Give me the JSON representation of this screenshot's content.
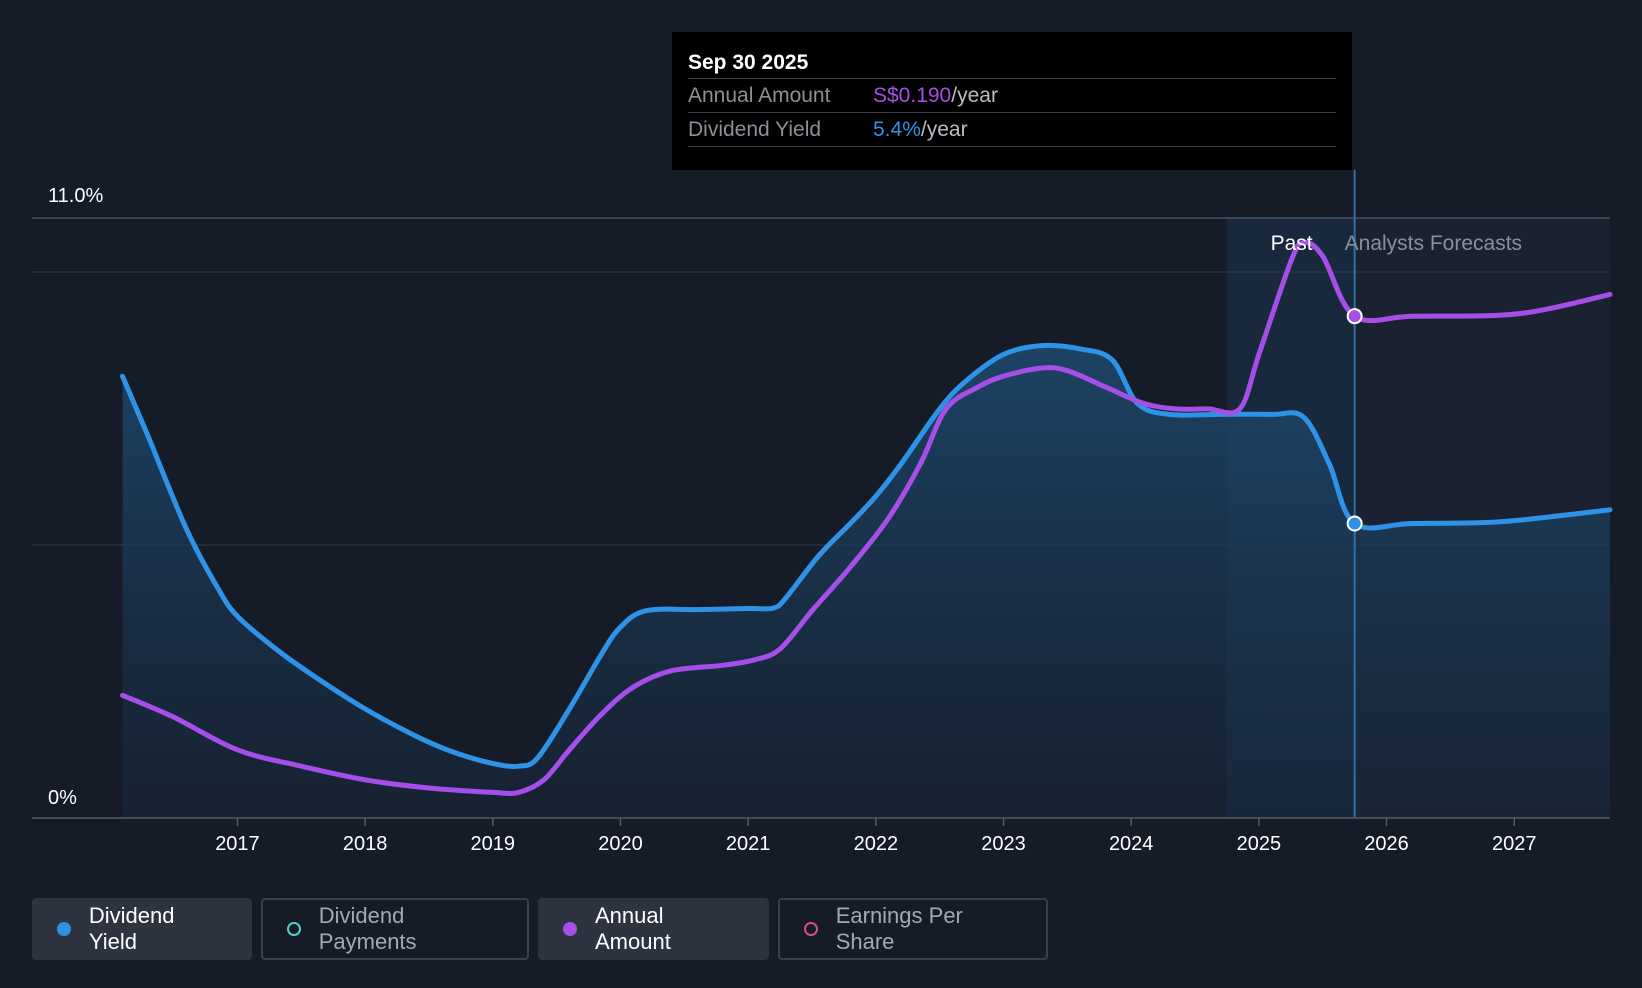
{
  "tooltip": {
    "date": "Sep 30 2025",
    "rows": [
      {
        "label": "Annual Amount",
        "value": "S$0.190",
        "unit": "/year",
        "color": "#a64ee8"
      },
      {
        "label": "Dividend Yield",
        "value": "5.4%",
        "unit": "/year",
        "color": "#2e93e6"
      }
    ]
  },
  "legend": [
    {
      "label": "Dividend Yield",
      "active": true,
      "filled": true,
      "color": "#2e93e6"
    },
    {
      "label": "Dividend Payments",
      "active": false,
      "filled": false,
      "color": "#4fd1c5"
    },
    {
      "label": "Annual Amount",
      "active": true,
      "filled": true,
      "color": "#a64ee8"
    },
    {
      "label": "Earnings Per Share",
      "active": false,
      "filled": false,
      "color": "#d44f8a"
    }
  ],
  "chart_data": {
    "type": "line",
    "y_tick_labels": [
      "11.0%",
      "0%"
    ],
    "ylim": [
      0,
      11
    ],
    "xlim": [
      2015.9,
      2027.75
    ],
    "x_tick_labels": [
      "2017",
      "2018",
      "2019",
      "2020",
      "2021",
      "2022",
      "2023",
      "2024",
      "2025",
      "2026",
      "2027"
    ],
    "x_ticks": [
      2017,
      2018,
      2019,
      2020,
      2021,
      2022,
      2023,
      2024,
      2025,
      2026,
      2027
    ],
    "regions": {
      "past_label": "Past",
      "forecast_label": "Analysts Forecasts",
      "boundary_x": 2025.75,
      "past_shade_start": 2024.75
    },
    "hover_x": 2025.75,
    "series": [
      {
        "name": "Dividend Yield",
        "color": "#2e93e6",
        "area": true,
        "points": [
          [
            2016.1,
            8.1
          ],
          [
            2016.3,
            7.0
          ],
          [
            2016.6,
            5.3
          ],
          [
            2016.85,
            4.2
          ],
          [
            2017.0,
            3.7
          ],
          [
            2017.3,
            3.1
          ],
          [
            2017.6,
            2.6
          ],
          [
            2018.0,
            2.0
          ],
          [
            2018.4,
            1.5
          ],
          [
            2018.7,
            1.2
          ],
          [
            2019.0,
            1.0
          ],
          [
            2019.2,
            0.95
          ],
          [
            2019.35,
            1.1
          ],
          [
            2019.6,
            2.0
          ],
          [
            2019.85,
            3.0
          ],
          [
            2020.0,
            3.5
          ],
          [
            2020.2,
            3.8
          ],
          [
            2020.6,
            3.82
          ],
          [
            2021.0,
            3.84
          ],
          [
            2021.2,
            3.85
          ],
          [
            2021.3,
            4.05
          ],
          [
            2021.55,
            4.8
          ],
          [
            2021.8,
            5.4
          ],
          [
            2022.0,
            5.9
          ],
          [
            2022.2,
            6.5
          ],
          [
            2022.5,
            7.5
          ],
          [
            2022.7,
            8.0
          ],
          [
            2023.0,
            8.5
          ],
          [
            2023.3,
            8.66
          ],
          [
            2023.6,
            8.6
          ],
          [
            2023.85,
            8.4
          ],
          [
            2024.05,
            7.6
          ],
          [
            2024.3,
            7.4
          ],
          [
            2024.7,
            7.4
          ],
          [
            2025.1,
            7.4
          ],
          [
            2025.35,
            7.35
          ],
          [
            2025.55,
            6.5
          ],
          [
            2025.75,
            5.4
          ],
          [
            2026.2,
            5.4
          ],
          [
            2026.8,
            5.42
          ],
          [
            2027.2,
            5.5
          ],
          [
            2027.75,
            5.65
          ]
        ]
      },
      {
        "name": "Annual Amount",
        "color": "#a64ee8",
        "area": false,
        "points": [
          [
            2016.1,
            2.25
          ],
          [
            2016.5,
            1.85
          ],
          [
            2017.0,
            1.25
          ],
          [
            2017.5,
            0.95
          ],
          [
            2018.0,
            0.7
          ],
          [
            2018.5,
            0.55
          ],
          [
            2019.0,
            0.47
          ],
          [
            2019.2,
            0.47
          ],
          [
            2019.4,
            0.7
          ],
          [
            2019.6,
            1.25
          ],
          [
            2019.85,
            1.9
          ],
          [
            2020.1,
            2.4
          ],
          [
            2020.4,
            2.7
          ],
          [
            2020.8,
            2.8
          ],
          [
            2021.05,
            2.9
          ],
          [
            2021.25,
            3.1
          ],
          [
            2021.5,
            3.8
          ],
          [
            2021.8,
            4.6
          ],
          [
            2022.1,
            5.5
          ],
          [
            2022.35,
            6.5
          ],
          [
            2022.55,
            7.5
          ],
          [
            2022.8,
            7.9
          ],
          [
            2023.0,
            8.1
          ],
          [
            2023.3,
            8.25
          ],
          [
            2023.5,
            8.2
          ],
          [
            2023.8,
            7.9
          ],
          [
            2024.1,
            7.6
          ],
          [
            2024.35,
            7.5
          ],
          [
            2024.6,
            7.5
          ],
          [
            2024.85,
            7.5
          ],
          [
            2025.0,
            8.5
          ],
          [
            2025.25,
            10.2
          ],
          [
            2025.35,
            10.55
          ],
          [
            2025.5,
            10.3
          ],
          [
            2025.75,
            9.2
          ],
          [
            2026.2,
            9.2
          ],
          [
            2026.9,
            9.22
          ],
          [
            2027.3,
            9.35
          ],
          [
            2027.75,
            9.6
          ]
        ]
      }
    ]
  }
}
